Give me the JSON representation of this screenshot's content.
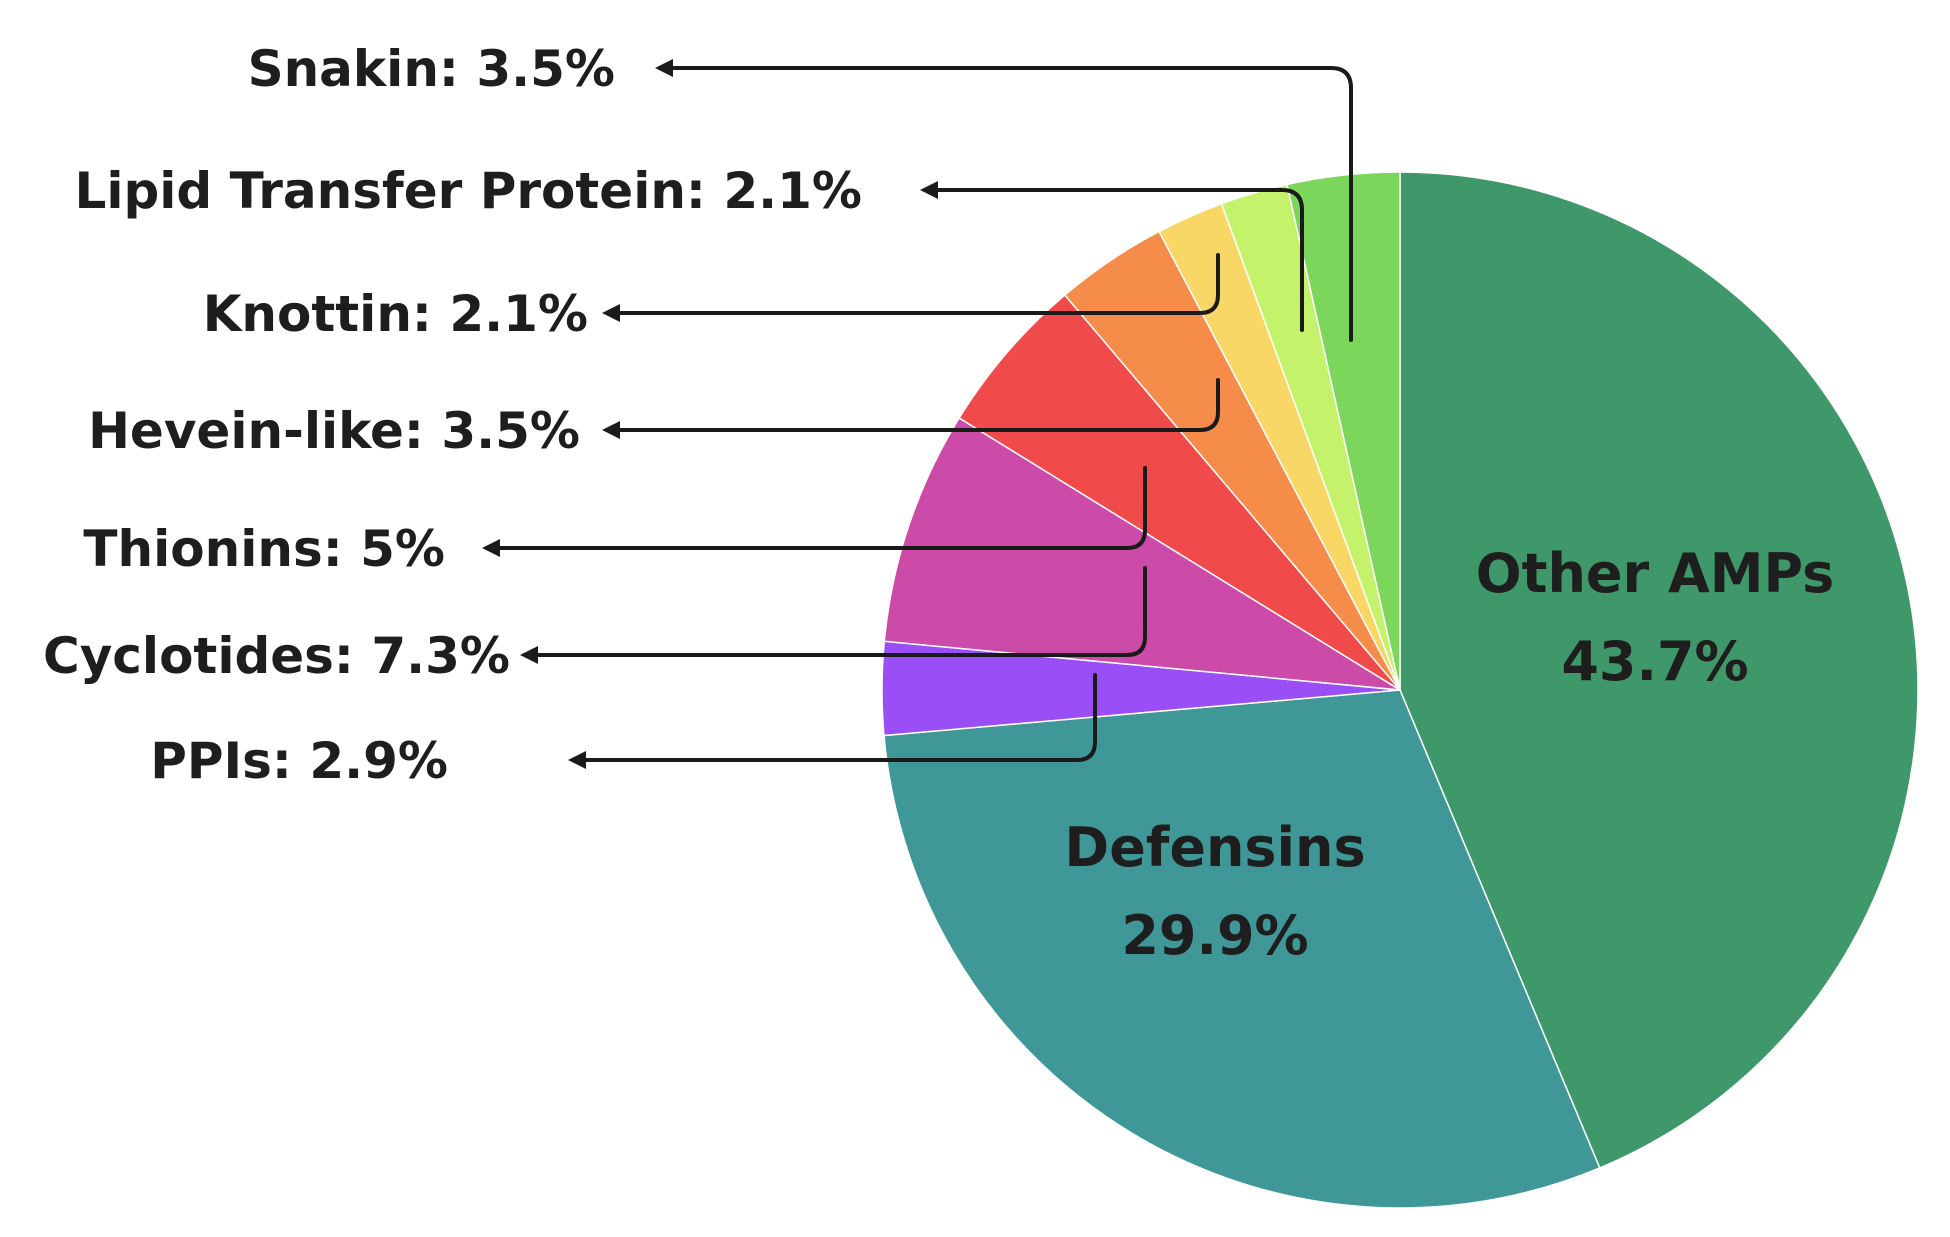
{
  "chart_data": {
    "type": "pie",
    "title": "",
    "slices": [
      {
        "name": "Other AMPs",
        "value": 43.7,
        "color": "#3f9869",
        "labels": [
          "Other AMPs",
          "43.7%"
        ],
        "placement": "inside"
      },
      {
        "name": "Defensins",
        "value": 29.9,
        "color": "#3f9797",
        "labels": [
          "Defensins",
          "29.9%"
        ],
        "placement": "inside"
      },
      {
        "name": "PPIs",
        "value": 2.9,
        "color": "#9a4ef6",
        "labels": [
          "PPIs: 2.9%"
        ],
        "placement": "callout"
      },
      {
        "name": "Cyclotides",
        "value": 7.3,
        "color": "#cc4aa8",
        "labels": [
          "Cyclotides: 7.3%"
        ],
        "placement": "callout"
      },
      {
        "name": "Thionins",
        "value": 5,
        "color": "#f04a4a",
        "labels": [
          "Thionins: 5%"
        ],
        "placement": "callout"
      },
      {
        "name": "Hevein-like",
        "value": 3.5,
        "color": "#f58c4a",
        "labels": [
          "Hevein-like: 3.5%"
        ],
        "placement": "callout"
      },
      {
        "name": "Knottin",
        "value": 2.1,
        "color": "#f9d766",
        "labels": [
          "Knottin: 2.1%"
        ],
        "placement": "callout"
      },
      {
        "name": "Lipid Transfer Protein",
        "value": 2.1,
        "color": "#c4f36b",
        "labels": [
          "Lipid Transfer Protein: 2.1%"
        ],
        "placement": "callout"
      },
      {
        "name": "Snakin",
        "value": 3.5,
        "color": "#7cd65c",
        "labels": [
          "Snakin: 3.5%"
        ],
        "placement": "callout"
      }
    ],
    "start": "12 o'clock",
    "direction": "clockwise",
    "legend": "none"
  }
}
